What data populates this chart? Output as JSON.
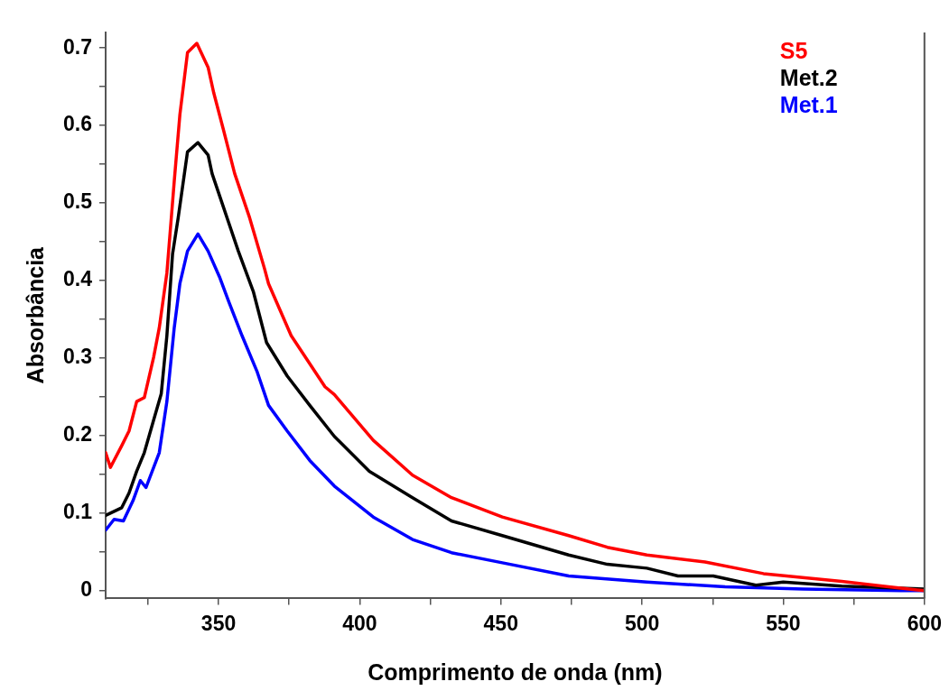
{
  "chart_data": {
    "type": "line",
    "xlabel": "Comprimento de onda (nm)",
    "ylabel": "Absorbância",
    "xlim": [
      310,
      600
    ],
    "xticks": [
      {
        "value": 325,
        "label": null
      },
      350,
      {
        "value": 375,
        "label": null
      },
      400,
      {
        "value": 425,
        "label": null
      },
      450,
      {
        "value": 475,
        "label": null
      },
      500,
      {
        "value": 525,
        "label": null
      },
      550,
      {
        "value": 575,
        "label": null
      },
      600
    ],
    "ylim": [
      -0.01,
      0.72
    ],
    "yticks": [
      0,
      {
        "value": 0.05,
        "label": null
      },
      0.1,
      {
        "value": 0.15,
        "label": null
      },
      0.2,
      {
        "value": 0.25,
        "label": null
      },
      0.3,
      {
        "value": 0.35,
        "label": null
      },
      0.4,
      {
        "value": 0.45,
        "label": null
      },
      0.5,
      {
        "value": 0.55,
        "label": null
      },
      0.6,
      {
        "value": 0.65,
        "label": null
      },
      0.7
    ],
    "grid": false,
    "legend": "top right",
    "marker": "none",
    "line_style": "solid",
    "series": [
      {
        "name": "S5",
        "color": "#ff0000",
        "x": [
          310,
          311.7,
          315.7,
          318.3,
          321,
          323.7,
          327,
          329,
          331.7,
          334.3,
          336.3,
          339,
          342.3,
          346.3,
          348.3,
          351.7,
          355.7,
          361,
          366.3,
          367.7,
          375.7,
          387.7,
          391,
          404.8,
          418.7,
          432.5,
          450.5,
          474,
          487.7,
          501.7,
          522.3,
          543,
          570.7,
          587.3,
          600
        ],
        "values": [
          0.178,
          0.159,
          0.187,
          0.206,
          0.244,
          0.249,
          0.301,
          0.339,
          0.41,
          0.528,
          0.614,
          0.694,
          0.706,
          0.675,
          0.642,
          0.595,
          0.538,
          0.481,
          0.415,
          0.396,
          0.329,
          0.263,
          0.253,
          0.194,
          0.149,
          0.12,
          0.095,
          0.071,
          0.056,
          0.046,
          0.037,
          0.022,
          0.012,
          0.005,
          0
        ]
      },
      {
        "name": "Met.2",
        "color": "#000000",
        "x": [
          310,
          315.7,
          318.3,
          321,
          323.7,
          327,
          329.7,
          331.7,
          333.7,
          335.7,
          339,
          342.7,
          346.3,
          347.7,
          351.7,
          357,
          362.3,
          367,
          374.3,
          382.3,
          391,
          403.4,
          418.7,
          432.5,
          450.5,
          474,
          487.7,
          501.7,
          512.7,
          525.2,
          540.3,
          550,
          570.7,
          600
        ],
        "values": [
          0.097,
          0.107,
          0.126,
          0.154,
          0.178,
          0.22,
          0.254,
          0.329,
          0.434,
          0.481,
          0.566,
          0.578,
          0.562,
          0.538,
          0.495,
          0.438,
          0.386,
          0.32,
          0.277,
          0.239,
          0.199,
          0.154,
          0.12,
          0.09,
          0.071,
          0.046,
          0.034,
          0.029,
          0.019,
          0.019,
          0.007,
          0.011,
          0.006,
          0.002
        ]
      },
      {
        "name": "Met.1",
        "color": "#0000ff",
        "x": [
          310,
          313,
          316.3,
          319.7,
          322.3,
          324.3,
          329,
          331.7,
          334.3,
          336.3,
          339,
          342.7,
          346.3,
          350.3,
          353.7,
          358.3,
          363.7,
          367.7,
          374.3,
          382.3,
          391,
          404.8,
          418.7,
          432.5,
          450.5,
          474,
          501.7,
          529.4,
          557,
          591.7,
          600
        ],
        "values": [
          0.078,
          0.092,
          0.09,
          0.116,
          0.142,
          0.133,
          0.178,
          0.244,
          0.339,
          0.396,
          0.438,
          0.46,
          0.438,
          0.405,
          0.372,
          0.329,
          0.282,
          0.239,
          0.206,
          0.168,
          0.135,
          0.095,
          0.066,
          0.049,
          0.036,
          0.019,
          0.011,
          0.005,
          0.002,
          0,
          0
        ]
      }
    ]
  }
}
